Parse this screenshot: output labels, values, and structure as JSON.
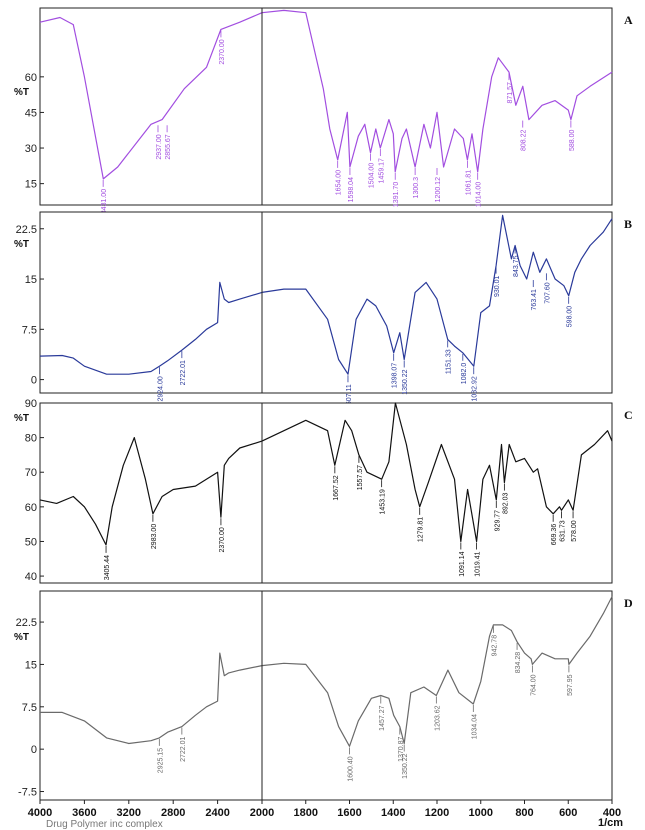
{
  "chart_data": [
    {
      "type": "line",
      "label": "A",
      "ylabel": "%T",
      "color": "#a24ee0",
      "ylim": [
        6,
        89
      ],
      "yticks": [
        15,
        30,
        45,
        60
      ],
      "xlim": [
        4000,
        400
      ],
      "x": [
        4000,
        3820,
        3700,
        3600,
        3430,
        3300,
        3100,
        3000,
        2900,
        2700,
        2500,
        2370,
        2200,
        2000,
        1900,
        1800,
        1720,
        1690,
        1654,
        1610,
        1598,
        1560,
        1530,
        1504,
        1480,
        1459,
        1420,
        1400,
        1391,
        1360,
        1340,
        1300,
        1260,
        1230,
        1200,
        1170,
        1120,
        1080,
        1061,
        1040,
        1014,
        990,
        950,
        920,
        871,
        840,
        808,
        780,
        720,
        660,
        600,
        588,
        560,
        500,
        400
      ],
      "y": [
        83,
        85,
        82,
        60,
        17,
        22,
        34,
        40,
        42,
        55,
        64,
        80,
        83,
        87,
        88,
        87,
        55,
        38,
        25,
        45,
        22,
        35,
        40,
        28,
        38,
        30,
        42,
        36,
        20,
        34,
        38,
        22,
        40,
        30,
        45,
        22,
        38,
        34,
        25,
        36,
        20,
        38,
        60,
        68,
        62,
        48,
        56,
        42,
        48,
        50,
        46,
        42,
        52,
        56,
        62
      ],
      "peaks": [
        {
          "x": 3431,
          "y": 17,
          "label": "3431.00"
        },
        {
          "x": 2937,
          "y": 40,
          "label": "2937.00"
        },
        {
          "x": 2855,
          "y": 40,
          "label": "2855.67"
        },
        {
          "x": 2370,
          "y": 80,
          "label": "2370.00"
        },
        {
          "x": 1654,
          "y": 25,
          "label": "1654.00"
        },
        {
          "x": 1598,
          "y": 22,
          "label": "1598.04"
        },
        {
          "x": 1504,
          "y": 28,
          "label": "1504.00"
        },
        {
          "x": 1459,
          "y": 30,
          "label": "1459.17"
        },
        {
          "x": 1391,
          "y": 20,
          "label": "1391.70"
        },
        {
          "x": 1300,
          "y": 22,
          "label": "1300.3"
        },
        {
          "x": 1200,
          "y": 22,
          "label": "1200.12"
        },
        {
          "x": 1061,
          "y": 25,
          "label": "1061.81"
        },
        {
          "x": 1014,
          "y": 20,
          "label": "1014.00"
        },
        {
          "x": 871,
          "y": 62,
          "label": "871.57"
        },
        {
          "x": 808,
          "y": 42,
          "label": "808.22"
        },
        {
          "x": 588,
          "y": 42,
          "label": "588.00"
        }
      ]
    },
    {
      "type": "line",
      "label": "B",
      "ylabel": "%T",
      "color": "#2a3a9a",
      "ylim": [
        -2,
        25
      ],
      "yticks": [
        0,
        7.5,
        15,
        22.5
      ],
      "xlim": [
        4000,
        400
      ],
      "x": [
        4000,
        3800,
        3700,
        3600,
        3400,
        3200,
        3000,
        2924,
        2850,
        2722,
        2600,
        2500,
        2400,
        2380,
        2340,
        2300,
        2200,
        2000,
        1900,
        1800,
        1700,
        1650,
        1607,
        1570,
        1520,
        1480,
        1430,
        1398,
        1370,
        1350,
        1300,
        1250,
        1200,
        1151,
        1120,
        1082,
        1032,
        1000,
        960,
        930,
        900,
        860,
        843,
        820,
        790,
        760,
        730,
        700,
        660,
        620,
        598,
        570,
        540,
        500,
        440,
        400
      ],
      "y": [
        3.5,
        3.6,
        3.2,
        2.0,
        0.8,
        0.8,
        1.2,
        2.0,
        2.8,
        4.4,
        6.0,
        7.5,
        8.5,
        14.5,
        12.0,
        11.5,
        12.0,
        13.0,
        13.5,
        13.5,
        9.0,
        3.0,
        0.8,
        9.0,
        12.0,
        11.0,
        8.0,
        4.0,
        7.0,
        3.0,
        13.0,
        14.5,
        12.0,
        6.0,
        5.0,
        4.0,
        2.0,
        10.0,
        11.0,
        17.0,
        24.5,
        18.0,
        20.0,
        17.0,
        15.0,
        19.0,
        16.0,
        18.0,
        15.0,
        14.0,
        12.5,
        16.0,
        18.0,
        20.0,
        22.0,
        24.0
      ],
      "peaks": [
        {
          "x": 2924,
          "y": 2.0,
          "label": "2924.00"
        },
        {
          "x": 2722,
          "y": 4.4,
          "label": "2722.01"
        },
        {
          "x": 1607,
          "y": 0.8,
          "label": "1607.11"
        },
        {
          "x": 1398,
          "y": 4.0,
          "label": "1398.07"
        },
        {
          "x": 1350,
          "y": 3.0,
          "label": "1350.22"
        },
        {
          "x": 1151,
          "y": 6.0,
          "label": "1151.33"
        },
        {
          "x": 1082,
          "y": 4.0,
          "label": "1082.0"
        },
        {
          "x": 1032,
          "y": 2.0,
          "label": "1032.92"
        },
        {
          "x": 930,
          "y": 17.0,
          "label": "930.01"
        },
        {
          "x": 843,
          "y": 20.0,
          "label": "843.75"
        },
        {
          "x": 760,
          "y": 15.0,
          "label": "763.41"
        },
        {
          "x": 700,
          "y": 16.0,
          "label": "707.60"
        },
        {
          "x": 598,
          "y": 12.5,
          "label": "598.00"
        }
      ]
    },
    {
      "type": "line",
      "label": "C",
      "ylabel": "%T",
      "color": "#111111",
      "ylim": [
        38,
        90
      ],
      "yticks": [
        40,
        50,
        60,
        70,
        80,
        90
      ],
      "xlim": [
        4000,
        400
      ],
      "x": [
        4000,
        3850,
        3700,
        3600,
        3500,
        3405,
        3350,
        3250,
        3150,
        3050,
        2983,
        2900,
        2800,
        2600,
        2400,
        2370,
        2340,
        2300,
        2200,
        2000,
        1800,
        1700,
        1667,
        1620,
        1590,
        1557,
        1520,
        1453,
        1420,
        1390,
        1340,
        1300,
        1279,
        1240,
        1180,
        1120,
        1091,
        1060,
        1019,
        990,
        960,
        929,
        905,
        892,
        870,
        840,
        800,
        760,
        740,
        700,
        669,
        640,
        631,
        600,
        578,
        540,
        480,
        420,
        400
      ],
      "y": [
        62,
        61,
        63,
        60,
        55,
        49,
        60,
        72,
        80,
        68,
        58,
        63,
        65,
        66,
        70,
        57,
        72,
        74,
        77,
        79,
        85,
        82,
        72,
        85,
        82,
        75,
        70,
        68,
        73,
        90,
        78,
        65,
        60,
        67,
        78,
        68,
        50,
        65,
        50,
        68,
        72,
        62,
        78,
        67,
        78,
        73,
        74,
        70,
        71,
        60,
        58,
        60,
        59,
        62,
        59,
        75,
        78,
        82,
        79
      ],
      "peaks": [
        {
          "x": 3405,
          "y": 49,
          "label": "3405.44"
        },
        {
          "x": 2983,
          "y": 58,
          "label": "2983.00"
        },
        {
          "x": 2370,
          "y": 57,
          "label": "2370.00"
        },
        {
          "x": 1667,
          "y": 72,
          "label": "1667.52"
        },
        {
          "x": 1557,
          "y": 75,
          "label": "1557.57"
        },
        {
          "x": 1453,
          "y": 68,
          "label": "1453.19"
        },
        {
          "x": 1279,
          "y": 60,
          "label": "1279.81"
        },
        {
          "x": 1091,
          "y": 50,
          "label": "1091.14"
        },
        {
          "x": 1019,
          "y": 50,
          "label": "1019.41"
        },
        {
          "x": 929,
          "y": 62,
          "label": "929.77"
        },
        {
          "x": 892,
          "y": 67,
          "label": "892.03"
        },
        {
          "x": 669,
          "y": 58,
          "label": "669.36"
        },
        {
          "x": 631,
          "y": 59,
          "label": "631.73"
        },
        {
          "x": 578,
          "y": 59,
          "label": "578.00"
        }
      ]
    },
    {
      "type": "line",
      "label": "D",
      "ylabel": "%T",
      "color": "#6a6a6a",
      "ylim": [
        -9,
        28
      ],
      "yticks": [
        -7.5,
        0,
        7.5,
        15,
        22.5
      ],
      "xlim": [
        4000,
        400
      ],
      "x": [
        4000,
        3800,
        3600,
        3400,
        3200,
        3000,
        2925,
        2850,
        2722,
        2600,
        2500,
        2400,
        2380,
        2340,
        2300,
        2200,
        2000,
        1900,
        1800,
        1700,
        1650,
        1600,
        1560,
        1500,
        1457,
        1420,
        1398,
        1370,
        1350,
        1320,
        1260,
        1203,
        1150,
        1100,
        1034,
        1000,
        960,
        942,
        900,
        860,
        834,
        800,
        770,
        764,
        720,
        660,
        600,
        597,
        560,
        500,
        440,
        400
      ],
      "y": [
        6.5,
        6.5,
        5.0,
        2.0,
        1.0,
        1.5,
        2.0,
        3.0,
        4.0,
        6.0,
        7.5,
        8.5,
        17.0,
        13.0,
        13.5,
        14.0,
        14.8,
        15.2,
        15.0,
        10.0,
        4.0,
        0.5,
        5.0,
        9.0,
        9.5,
        9.0,
        6.0,
        4.0,
        1.0,
        10.0,
        11.0,
        9.5,
        14.0,
        10.0,
        8.0,
        12.0,
        20.0,
        22.0,
        22.0,
        21.0,
        19.0,
        17.0,
        16.0,
        15.0,
        17.0,
        16.0,
        16.0,
        15.0,
        17.0,
        20.0,
        24.0,
        27.0
      ],
      "peaks": [
        {
          "x": 2925,
          "y": 2.0,
          "label": "2925.15"
        },
        {
          "x": 2722,
          "y": 4.0,
          "label": "2722.01"
        },
        {
          "x": 1600,
          "y": 0.5,
          "label": "1600.40"
        },
        {
          "x": 1457,
          "y": 9.5,
          "label": "1457.27"
        },
        {
          "x": 1370,
          "y": 4.0,
          "label": "1370.87"
        },
        {
          "x": 1350,
          "y": 1.0,
          "label": "1350.22"
        },
        {
          "x": 1203,
          "y": 9.5,
          "label": "1203.62"
        },
        {
          "x": 1034,
          "y": 8.0,
          "label": "1034.04"
        },
        {
          "x": 942,
          "y": 22.0,
          "label": "942.78"
        },
        {
          "x": 834,
          "y": 19.0,
          "label": "834.28"
        },
        {
          "x": 764,
          "y": 15.0,
          "label": "764.00"
        },
        {
          "x": 597,
          "y": 15.0,
          "label": "597.95"
        }
      ]
    }
  ],
  "xaxis": {
    "ticks": [
      4000,
      3600,
      3200,
      2800,
      2400,
      2000,
      1800,
      1600,
      1400,
      1200,
      1000,
      800,
      600,
      400
    ],
    "unit": "1/cm",
    "scale_break": 2000
  },
  "footer": "Drug Polymer inc complex"
}
